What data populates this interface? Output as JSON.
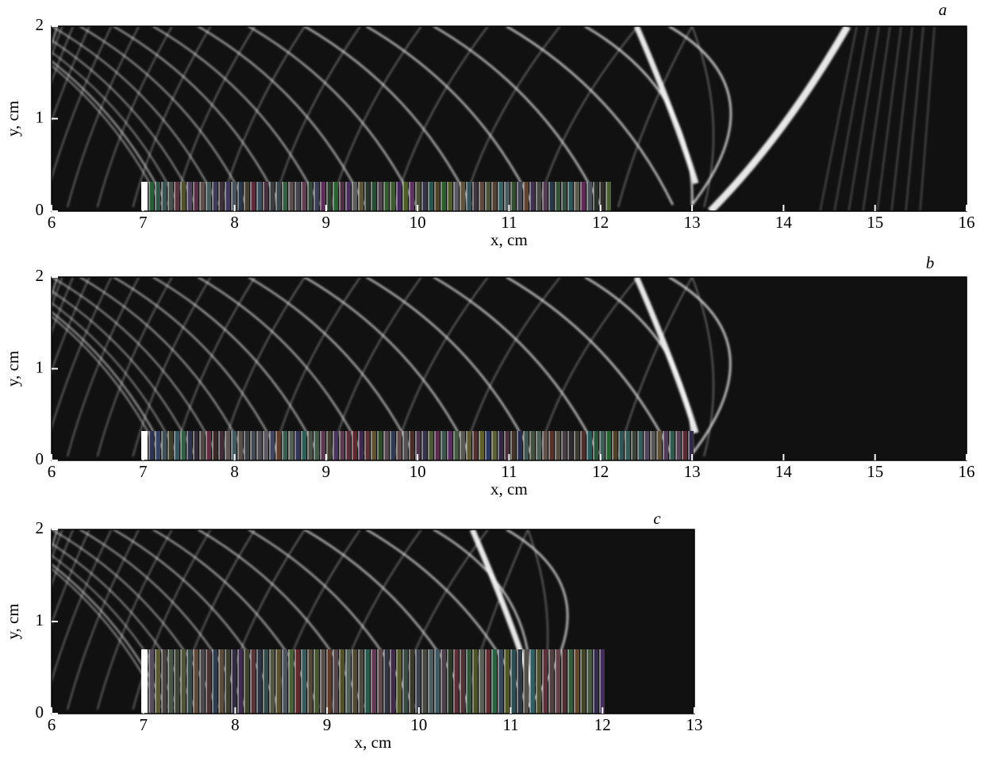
{
  "chart_data": [
    {
      "type": "image",
      "panel_label": "a",
      "xlabel": "x, cm",
      "ylabel": "y, cm",
      "xlim": [
        6,
        16
      ],
      "ylim": [
        0,
        2
      ],
      "xticks": [
        6,
        7,
        8,
        9,
        10,
        11,
        12,
        13,
        14,
        15,
        16
      ],
      "yticks": [
        0,
        1,
        2
      ]
    },
    {
      "type": "image",
      "panel_label": "b",
      "xlabel": "x, cm",
      "ylabel": "y, cm",
      "xlim": [
        6,
        16
      ],
      "ylim": [
        0,
        2
      ],
      "xticks": [
        6,
        7,
        8,
        9,
        10,
        11,
        12,
        13,
        14,
        15,
        16
      ],
      "yticks": [
        0,
        1,
        2
      ]
    },
    {
      "type": "image",
      "panel_label": "c",
      "xlabel": "x, cm",
      "ylabel": "y, cm",
      "xlim": [
        6,
        13
      ],
      "ylim": [
        0,
        2
      ],
      "xticks": [
        6,
        7,
        8,
        9,
        10,
        11,
        12,
        13
      ],
      "yticks": [
        0,
        1,
        2
      ]
    }
  ]
}
